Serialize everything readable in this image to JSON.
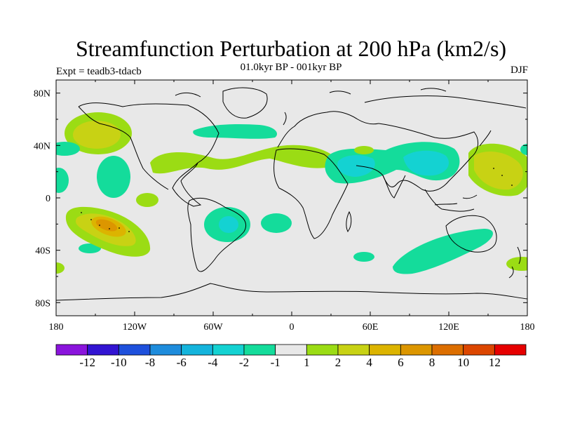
{
  "chart": {
    "title": "Streamfunction Perturbation at 200 hPa (km2/s)",
    "left_label": "Expt = teadb3-tdacb",
    "center_label": "01.0kyr BP - 001kyr BP",
    "right_label": "DJF"
  },
  "colors": {
    "land_bg": "#e8e8e8",
    "c_m12": "#8a14dc",
    "c_m10": "#3214d2",
    "c_m8": "#1e50dc",
    "c_m6": "#1e8cdc",
    "c_m4": "#14b4dc",
    "c_m2": "#14d2d2",
    "c_m1": "#14dc9b",
    "c_0": "#e8e8e8",
    "c_1": "#9bdc14",
    "c_2": "#c8d214",
    "c_4": "#dcb400",
    "c_6": "#dc9600",
    "c_8": "#dc6e00",
    "c_10": "#dc4600",
    "c_12": "#dc1e1e",
    "c_14": "#e60000"
  },
  "chart_data": {
    "type": "contour_map",
    "variable": "200 hPa streamfunction perturbation",
    "units": "km2/s",
    "projection": "cylindrical equidistant",
    "lon_range": [
      -180,
      180
    ],
    "lat_range": [
      -90,
      90
    ],
    "x_ticks": [
      "180",
      "120W",
      "60W",
      "0",
      "60E",
      "120E",
      "180"
    ],
    "y_ticks": [
      "80N",
      "40N",
      "0",
      "40S",
      "80S"
    ],
    "colorbar_levels": [
      "-12",
      "-10",
      "-8",
      "-6",
      "-4",
      "-2",
      "-1",
      "1",
      "2",
      "4",
      "6",
      "8",
      "10",
      "12"
    ],
    "features": [
      {
        "region": "North Pacific / Alaska",
        "lon": -145,
        "lat": 50,
        "value": 4
      },
      {
        "region": "South Pacific",
        "lon": -140,
        "lat": -23,
        "value": 8
      },
      {
        "region": "Western North Pacific",
        "lon": 160,
        "lat": 25,
        "value": 4
      },
      {
        "region": "Subtropical Atlantic band",
        "lon": -40,
        "lat": 28,
        "value": 1
      },
      {
        "region": "Tibet / South Asia",
        "lon": 95,
        "lat": 30,
        "value": -2
      },
      {
        "region": "South America",
        "lon": -50,
        "lat": -20,
        "value": -2
      },
      {
        "region": "Southern Indian Ocean / Australia",
        "lon": 120,
        "lat": -40,
        "value": -1
      }
    ]
  }
}
